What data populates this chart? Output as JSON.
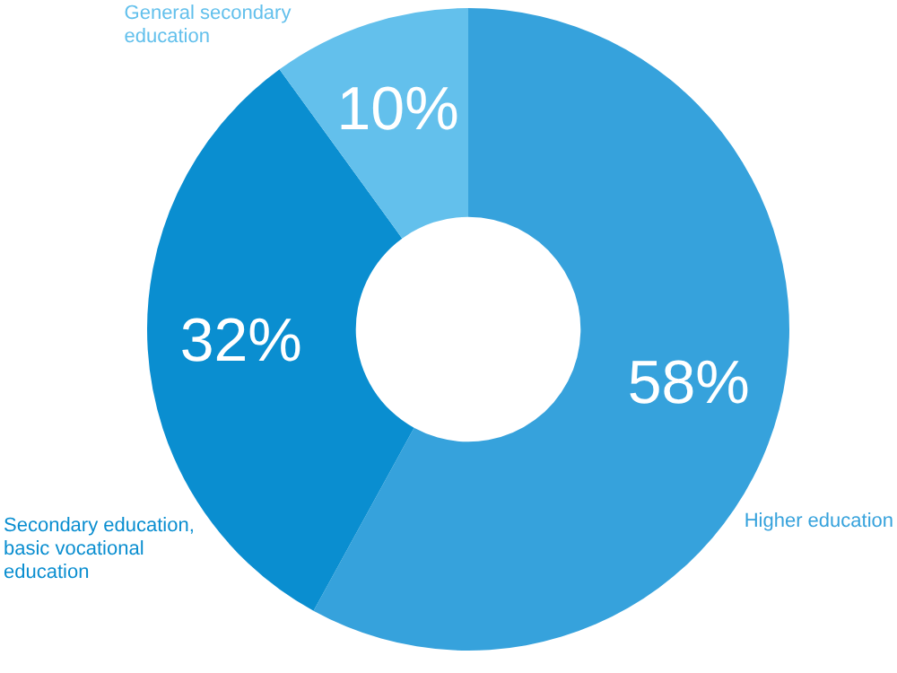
{
  "chart_data": {
    "type": "donut",
    "categories": [
      "Higher education",
      "Secondary education, basic vocational education",
      "General secondary education"
    ],
    "values": [
      58,
      32,
      10
    ],
    "colors": [
      "#36a2dc",
      "#0a8ed0",
      "#63c0ec"
    ],
    "value_labels": [
      "58%",
      "32%",
      "10%"
    ],
    "legend": false
  }
}
